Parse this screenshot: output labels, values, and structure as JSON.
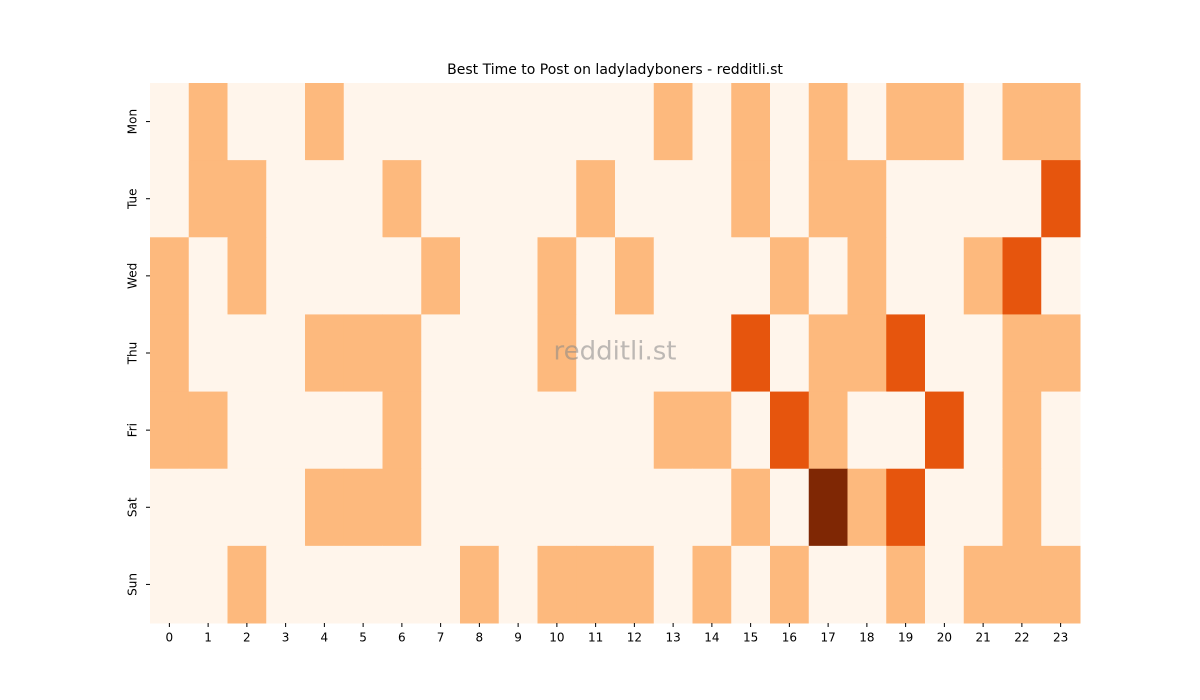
{
  "chart_data": {
    "type": "heatmap",
    "title": "Best Time to Post on ladyladyboners - redditli.st",
    "watermark": "redditli.st",
    "x_categories": [
      0,
      1,
      2,
      3,
      4,
      5,
      6,
      7,
      8,
      9,
      10,
      11,
      12,
      13,
      14,
      15,
      16,
      17,
      18,
      19,
      20,
      21,
      22,
      23
    ],
    "y_categories": [
      "Mon",
      "Tue",
      "Wed",
      "Thu",
      "Fri",
      "Sat",
      "Sun"
    ],
    "values": [
      [
        0,
        1,
        0,
        0,
        1,
        0,
        0,
        0,
        0,
        0,
        0,
        0,
        0,
        1,
        0,
        1,
        0,
        1,
        0,
        1,
        1,
        0,
        1,
        1
      ],
      [
        0,
        1,
        1,
        0,
        0,
        0,
        1,
        0,
        0,
        0,
        0,
        1,
        0,
        0,
        0,
        1,
        0,
        1,
        1,
        0,
        0,
        0,
        0,
        2
      ],
      [
        1,
        0,
        1,
        0,
        0,
        0,
        0,
        1,
        0,
        0,
        1,
        0,
        1,
        0,
        0,
        0,
        1,
        0,
        1,
        0,
        0,
        1,
        2,
        0
      ],
      [
        1,
        0,
        0,
        0,
        1,
        1,
        1,
        0,
        0,
        0,
        1,
        0,
        0,
        0,
        0,
        2,
        0,
        1,
        1,
        2,
        0,
        0,
        1,
        1
      ],
      [
        1,
        1,
        0,
        0,
        0,
        0,
        1,
        0,
        0,
        0,
        0,
        0,
        0,
        1,
        1,
        0,
        2,
        1,
        0,
        0,
        2,
        0,
        1,
        0
      ],
      [
        0,
        0,
        0,
        0,
        1,
        1,
        1,
        0,
        0,
        0,
        0,
        0,
        0,
        0,
        0,
        1,
        0,
        3,
        1,
        2,
        0,
        0,
        1,
        0
      ],
      [
        0,
        0,
        1,
        0,
        0,
        0,
        0,
        0,
        1,
        0,
        1,
        1,
        1,
        0,
        1,
        0,
        1,
        0,
        0,
        1,
        0,
        1,
        1,
        1
      ]
    ],
    "colormap": [
      "#fff5eb",
      "#fdb97d",
      "#e6550d",
      "#7f2704"
    ],
    "zlim": [
      0,
      3
    ]
  }
}
